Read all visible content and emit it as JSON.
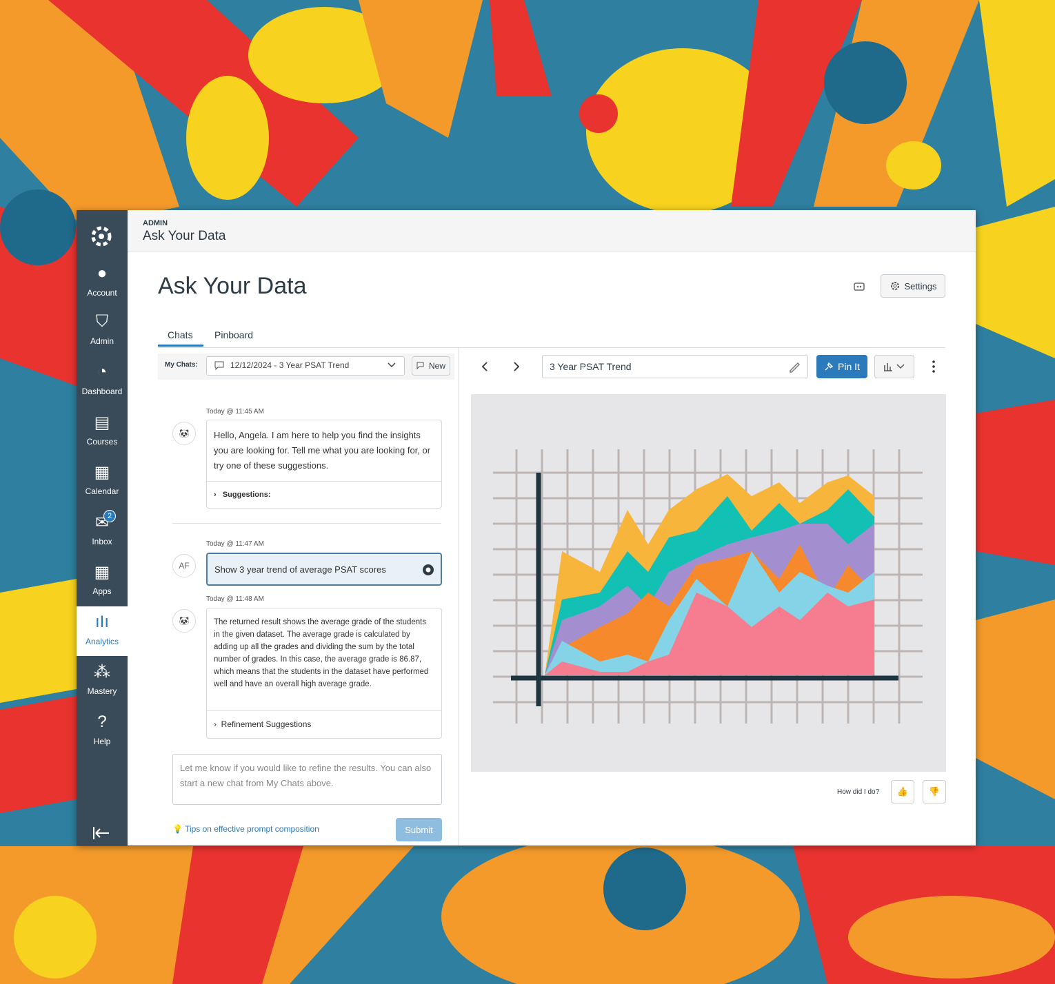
{
  "header": {
    "section": "ADMIN",
    "title": "Ask Your Data"
  },
  "nav": {
    "items": [
      "Account",
      "Admin",
      "Dashboard",
      "Courses",
      "Calendar",
      "Inbox",
      "Apps",
      "Analytics",
      "Mastery",
      "Help"
    ],
    "inbox_badge": 2
  },
  "page": {
    "title": "Ask Your Data",
    "settings": "Settings",
    "tabs": [
      "Chats",
      "Pinboard"
    ]
  },
  "chat": {
    "my_chats_label": "My Chats:",
    "selected_chat": "12/12/2024 - 3 Year PSAT Trend",
    "new": "New",
    "messages": [
      {
        "time": "Today @ 11:45 AM",
        "text": "Hello, Angela.  I am here to help you find the insights you are looking for.  Tell me what you are looking for, or try one of these suggestions.",
        "expander": "Suggestions:"
      },
      {
        "time": "Today @ 11:47 AM",
        "avatar": "AF",
        "text": "Show 3 year trend of average PSAT scores"
      },
      {
        "time": "Today @ 11:48 AM",
        "text": "The returned result shows the average grade of the students in the given dataset. The average grade is calculated by adding up all the grades and dividing the sum by the total number of grades. In this case, the average grade is 86.87, which means that the students in the dataset have performed well and have an overall high average grade.",
        "expander": "Refinement Suggestions"
      }
    ],
    "input_placeholder": "Let me know if you would like to refine the results.  You can also start a new chat from My Chats above.",
    "tips": "Tips on effective prompt composition",
    "submit": "Submit"
  },
  "result": {
    "title": "3 Year PSAT Trend",
    "pin": "Pin It",
    "feedback": "How did I do?"
  }
}
